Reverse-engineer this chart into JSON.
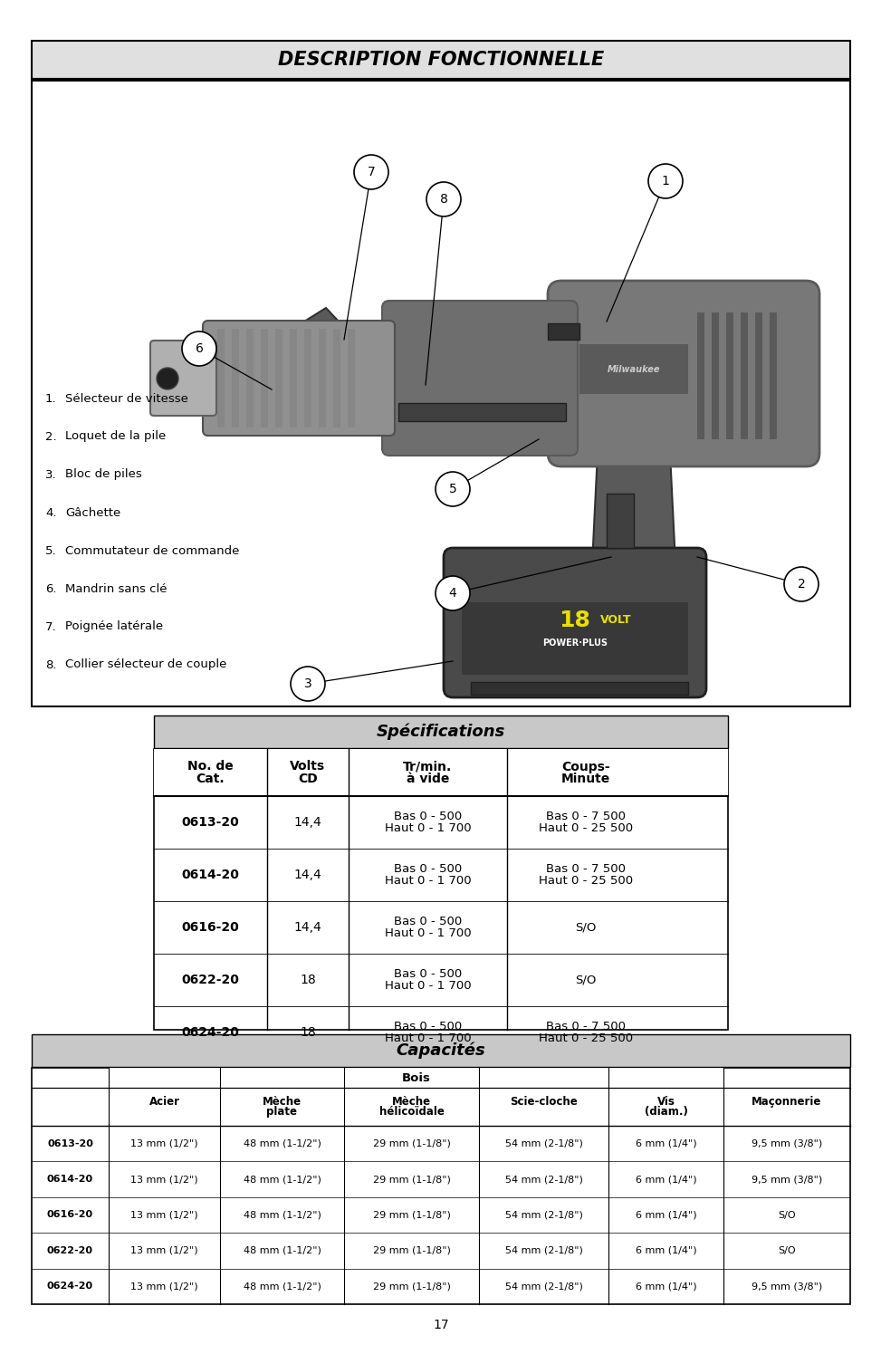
{
  "page_bg": "#ffffff",
  "title_section1": "DESCRIPTION FONCTIONNELLE",
  "numbered_items": [
    "Sélecteur de vitesse",
    "Loquet de la pile",
    "Bloc de piles",
    "Gâchette",
    "Commutateur de commande",
    "Mandrin sans clé",
    "Poignée latérale",
    "Collier sélecteur de couple"
  ],
  "title_section2": "Spécifications",
  "spec_rows": [
    [
      "0613-20",
      "14,4",
      "Bas 0 - 500\nHaut 0 - 1 700",
      "Bas 0 - 7 500\nHaut 0 - 25 500"
    ],
    [
      "0614-20",
      "14,4",
      "Bas 0 - 500\nHaut 0 - 1 700",
      "Bas 0 - 7 500\nHaut 0 - 25 500"
    ],
    [
      "0616-20",
      "14,4",
      "Bas 0 - 500\nHaut 0 - 1 700",
      "S/O"
    ],
    [
      "0622-20",
      "18",
      "Bas 0 - 500\nHaut 0 - 1 700",
      "S/O"
    ],
    [
      "0624-20",
      "18",
      "Bas 0 - 500\nHaut 0 - 1 700",
      "Bas 0 - 7 500\nHaut 0 - 25 500"
    ]
  ],
  "title_section3": "Capacités",
  "cap_rows": [
    [
      "0613-20",
      "13 mm (1/2\")",
      "48 mm (1-1/2\")",
      "29 mm (1-1/8\")",
      "54 mm (2-1/8\")",
      "6 mm (1/4\")",
      "9,5 mm (3/8\")"
    ],
    [
      "0614-20",
      "13 mm (1/2\")",
      "48 mm (1-1/2\")",
      "29 mm (1-1/8\")",
      "54 mm (2-1/8\")",
      "6 mm (1/4\")",
      "9,5 mm (3/8\")"
    ],
    [
      "0616-20",
      "13 mm (1/2\")",
      "48 mm (1-1/2\")",
      "29 mm (1-1/8\")",
      "54 mm (2-1/8\")",
      "6 mm (1/4\")",
      "S/O"
    ],
    [
      "0622-20",
      "13 mm (1/2\")",
      "48 mm (1-1/2\")",
      "29 mm (1-1/8\")",
      "54 mm (2-1/8\")",
      "6 mm (1/4\")",
      "S/O"
    ],
    [
      "0624-20",
      "13 mm (1/2\")",
      "48 mm (1-1/2\")",
      "29 mm (1-1/8\")",
      "54 mm (2-1/8\")",
      "6 mm (1/4\")",
      "9,5 mm (3/8\")"
    ]
  ],
  "page_number": "17"
}
